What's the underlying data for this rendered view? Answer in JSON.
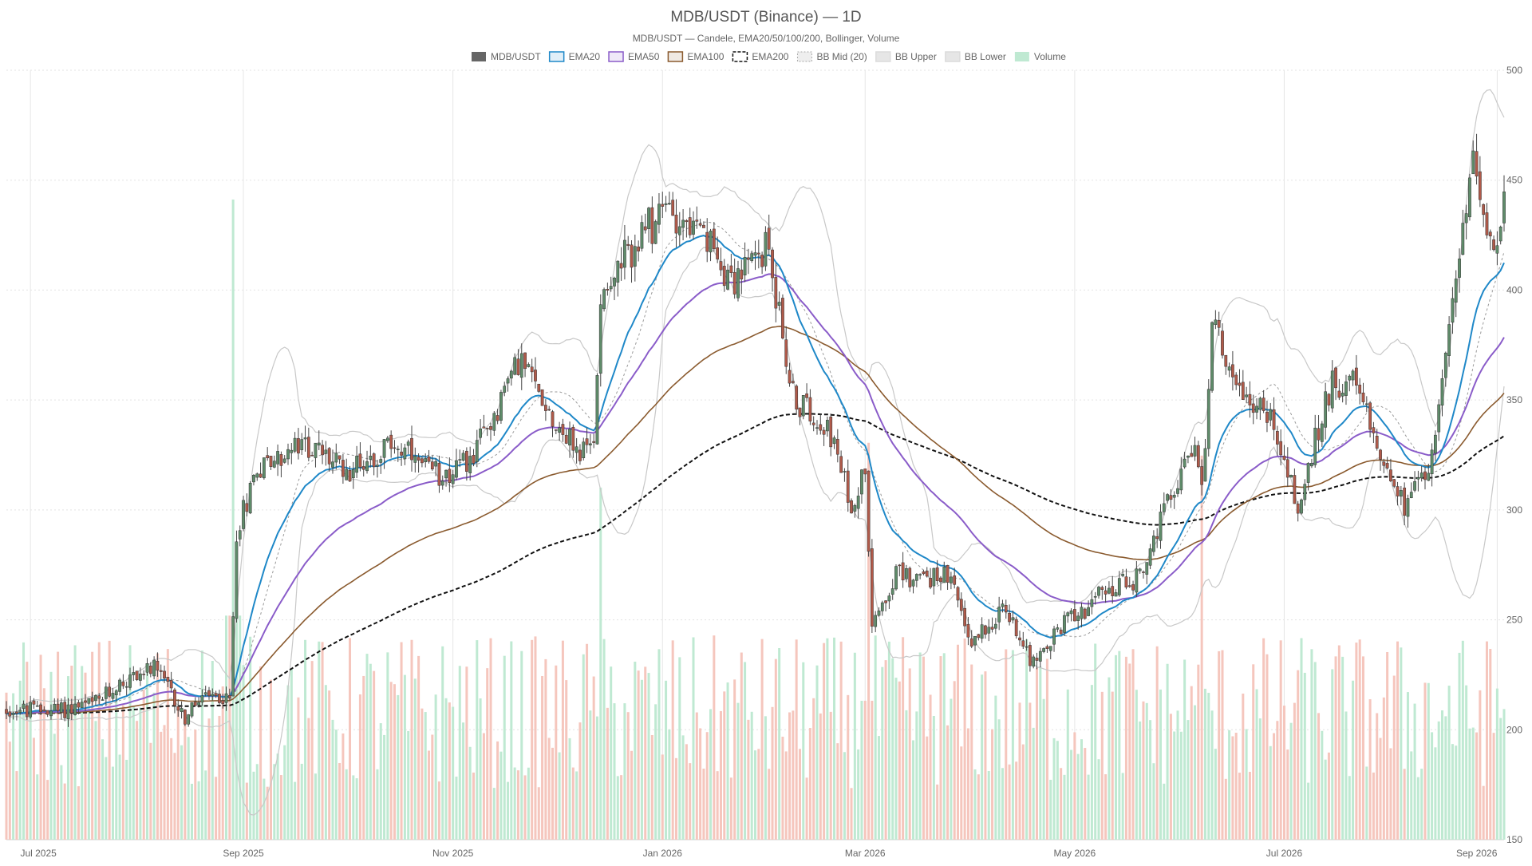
{
  "chart_data": {
    "type": "candlestick",
    "title": "MDB/USDT (Binance) — 1D",
    "subtitle": "MDB/USDT — Candele, EMA20/50/100/200, Bollinger, Volume",
    "legend": [
      {
        "name": "MDB/USDT",
        "color": "#666666",
        "style": "solid-fill"
      },
      {
        "name": "EMA20",
        "color": "#1f88c8",
        "style": "line"
      },
      {
        "name": "EMA50",
        "color": "#8a5cc9",
        "style": "line"
      },
      {
        "name": "EMA100",
        "color": "#8a5a2e",
        "style": "line"
      },
      {
        "name": "EMA200",
        "color": "#111111",
        "style": "dashed"
      },
      {
        "name": "BB Mid (20)",
        "color": "#9a9a9a",
        "style": "dotted"
      },
      {
        "name": "BB Upper",
        "color": "#c8c8c8",
        "style": "line"
      },
      {
        "name": "BB Lower",
        "color": "#c8c8c8",
        "style": "line"
      },
      {
        "name": "Volume",
        "color": "#bfe9d2",
        "style": "solid-fill"
      }
    ],
    "y_ticks": [
      150,
      200,
      250,
      300,
      350,
      400,
      450,
      500
    ],
    "ylim": [
      150,
      500
    ],
    "x_ticks": [
      "Jul 2025",
      "Sep 2025",
      "Nov 2025",
      "Jan 2026",
      "Mar 2026",
      "May 2026",
      "Jul 2026",
      "Sep 2026"
    ],
    "x_tick_dates": [
      "2025-07-01",
      "2025-09-01",
      "2025-11-01",
      "2026-01-01",
      "2026-03-01",
      "2026-05-01",
      "2026-07-01",
      "2026-09-01"
    ],
    "x_range": [
      "2025-06-24",
      "2026-09-03"
    ],
    "price_anchors": [
      [
        "2025-06-24",
        209
      ],
      [
        "2025-07-10",
        209
      ],
      [
        "2025-07-20",
        212
      ],
      [
        "2025-07-28",
        222
      ],
      [
        "2025-08-05",
        228
      ],
      [
        "2025-08-10",
        220
      ],
      [
        "2025-08-15",
        205
      ],
      [
        "2025-08-20",
        215
      ],
      [
        "2025-08-28",
        213
      ],
      [
        "2025-08-30",
        290
      ],
      [
        "2025-09-05",
        320
      ],
      [
        "2025-09-20",
        330
      ],
      [
        "2025-10-01",
        318
      ],
      [
        "2025-10-15",
        330
      ],
      [
        "2025-10-25",
        316
      ],
      [
        "2025-11-05",
        320
      ],
      [
        "2025-11-12",
        340
      ],
      [
        "2025-11-20",
        370
      ],
      [
        "2025-12-01",
        340
      ],
      [
        "2025-12-08",
        325
      ],
      [
        "2025-12-12",
        330
      ],
      [
        "2025-12-14",
        400
      ],
      [
        "2025-12-22",
        415
      ],
      [
        "2026-01-02",
        438
      ],
      [
        "2026-01-12",
        425
      ],
      [
        "2026-01-22",
        405
      ],
      [
        "2026-02-01",
        420
      ],
      [
        "2026-02-08",
        350
      ],
      [
        "2026-02-18",
        340
      ],
      [
        "2026-02-25",
        300
      ],
      [
        "2026-03-01",
        320
      ],
      [
        "2026-03-03",
        250
      ],
      [
        "2026-03-10",
        270
      ],
      [
        "2026-03-25",
        270
      ],
      [
        "2026-04-01",
        240
      ],
      [
        "2026-04-10",
        255
      ],
      [
        "2026-04-20",
        230
      ],
      [
        "2026-04-28",
        250
      ],
      [
        "2026-05-10",
        262
      ],
      [
        "2026-05-20",
        270
      ],
      [
        "2026-05-30",
        310
      ],
      [
        "2026-06-04",
        330
      ],
      [
        "2026-06-07",
        310
      ],
      [
        "2026-06-10",
        385
      ],
      [
        "2026-06-18",
        355
      ],
      [
        "2026-06-28",
        340
      ],
      [
        "2026-07-05",
        300
      ],
      [
        "2026-07-15",
        360
      ],
      [
        "2026-07-22",
        355
      ],
      [
        "2026-07-28",
        330
      ],
      [
        "2026-08-05",
        300
      ],
      [
        "2026-08-12",
        320
      ],
      [
        "2026-08-18",
        380
      ],
      [
        "2026-08-25",
        460
      ],
      [
        "2026-09-01",
        415
      ],
      [
        "2026-09-03",
        438
      ]
    ],
    "volume_spikes": [
      [
        "2025-08-29",
        1.0
      ],
      [
        "2025-12-14",
        0.55
      ],
      [
        "2026-03-02",
        0.62
      ],
      [
        "2026-06-07",
        0.6
      ]
    ],
    "ema_periods": [
      20,
      50,
      100,
      200
    ],
    "bollinger": {
      "period": 20,
      "std": 2
    },
    "colors": {
      "up": "#5f8c6a",
      "down": "#b05a4a",
      "vol_up": "#bfe9d2",
      "vol_down": "#f5c6bd"
    }
  }
}
